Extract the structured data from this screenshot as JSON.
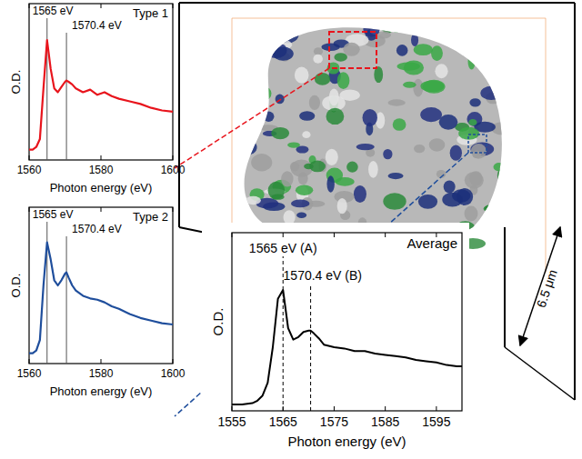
{
  "chart_data": [
    {
      "type": "line",
      "title": "Type 1",
      "x_label": "Photon energy (eV)",
      "y_label": "O.D.",
      "color": "#e8141c",
      "line_style": "solid",
      "tick_labels": "x",
      "xlim": [
        1560,
        1600
      ],
      "xticks": [
        1560,
        1580,
        1600
      ],
      "ylim": [
        0,
        1.2
      ],
      "x": [
        1560,
        1561,
        1562,
        1563,
        1564,
        1565,
        1566,
        1567,
        1568,
        1569,
        1570,
        1570.4,
        1571,
        1572,
        1573,
        1575,
        1577,
        1579,
        1581,
        1583,
        1585,
        1588,
        1591,
        1594,
        1597,
        1600
      ],
      "values": [
        0.08,
        0.08,
        0.1,
        0.16,
        0.55,
        0.92,
        0.7,
        0.55,
        0.52,
        0.56,
        0.6,
        0.61,
        0.6,
        0.58,
        0.55,
        0.52,
        0.54,
        0.5,
        0.52,
        0.49,
        0.47,
        0.45,
        0.43,
        0.4,
        0.38,
        0.37
      ],
      "annotations": [
        {
          "x": 1565,
          "label": "1565 eV"
        },
        {
          "x": 1570.4,
          "label": "1570.4 eV"
        }
      ]
    },
    {
      "type": "line",
      "title": "Type 2",
      "x_label": "Photon energy (eV)",
      "y_label": "O.D.",
      "color": "#1f4e9c",
      "line_style": "solid",
      "tick_labels": "x",
      "xlim": [
        1560,
        1600
      ],
      "xticks": [
        1560,
        1580,
        1600
      ],
      "ylim": [
        0,
        1.2
      ],
      "x": [
        1560,
        1561,
        1562,
        1563,
        1564,
        1565,
        1566,
        1567,
        1568,
        1569,
        1570,
        1570.4,
        1571,
        1572,
        1573,
        1575,
        1577,
        1579,
        1581,
        1583,
        1585,
        1588,
        1591,
        1594,
        1597,
        1600
      ],
      "values": [
        0.08,
        0.08,
        0.1,
        0.18,
        0.6,
        0.93,
        0.8,
        0.64,
        0.6,
        0.64,
        0.69,
        0.7,
        0.66,
        0.6,
        0.56,
        0.52,
        0.5,
        0.49,
        0.47,
        0.44,
        0.42,
        0.38,
        0.35,
        0.33,
        0.31,
        0.3
      ],
      "annotations": [
        {
          "x": 1565,
          "label": "1565 eV"
        },
        {
          "x": 1570.4,
          "label": "1570.4 eV"
        }
      ]
    },
    {
      "type": "line",
      "title": "Average",
      "x_label": "Photon energy (eV)",
      "y_label": "O.D.",
      "color": "#000000",
      "line_style": "solid",
      "tick_labels": "x",
      "xlim": [
        1555,
        1600
      ],
      "xticks": [
        1555,
        1565,
        1575,
        1585,
        1595
      ],
      "ylim": [
        0,
        1.4
      ],
      "x": [
        1555,
        1557,
        1559,
        1560,
        1561,
        1562,
        1563,
        1564,
        1565,
        1566,
        1567,
        1568,
        1569,
        1570,
        1570.4,
        1571,
        1572,
        1573,
        1575,
        1577,
        1579,
        1581,
        1583,
        1585,
        1587,
        1589,
        1591,
        1593,
        1595,
        1597,
        1599,
        1600
      ],
      "values": [
        0.05,
        0.05,
        0.06,
        0.08,
        0.12,
        0.22,
        0.5,
        0.88,
        0.95,
        0.65,
        0.56,
        0.58,
        0.62,
        0.63,
        0.63,
        0.61,
        0.57,
        0.52,
        0.5,
        0.49,
        0.47,
        0.47,
        0.45,
        0.44,
        0.43,
        0.42,
        0.4,
        0.39,
        0.38,
        0.36,
        0.35,
        0.35
      ],
      "annotations": [
        {
          "x": 1565,
          "label": "1565 eV (A)"
        },
        {
          "x": 1570.4,
          "label": "1570.4 eV (B)"
        }
      ]
    }
  ],
  "scale_bar": {
    "label": "6.5 μm"
  }
}
